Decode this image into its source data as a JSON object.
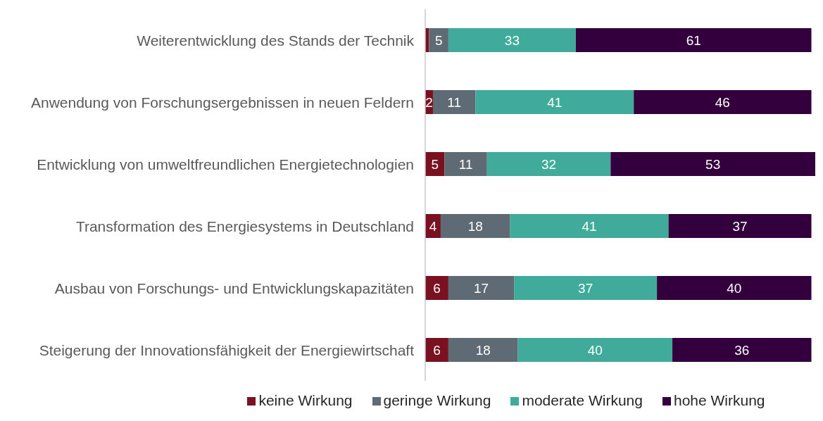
{
  "chart_data": {
    "type": "bar",
    "orientation": "horizontal",
    "stacked": true,
    "legend": "bottom",
    "categories": [
      "Weiterentwicklung des Stands der Technik",
      "Anwendung von Forschungsergebnissen in neuen Feldern",
      "Entwicklung von umweltfreundlichen Energietechnologien",
      "Transformation des Energiesystems in Deutschland",
      "Ausbau von Forschungs- und Entwicklungskapazitäten",
      "Steigerung der Innovationsfähigkeit der Energiewirtschaft"
    ],
    "series": [
      {
        "name": "keine Wirkung",
        "color": "#7a1120",
        "values": [
          1,
          2,
          5,
          4,
          6,
          6
        ],
        "value_labels": [
          null,
          "2",
          "5",
          "4",
          "6",
          "6"
        ]
      },
      {
        "name": "geringe Wirkung",
        "color": "#5e6a74",
        "values": [
          5,
          11,
          11,
          18,
          17,
          18
        ],
        "value_labels": [
          "5",
          "11",
          "11",
          "18",
          "17",
          "18"
        ]
      },
      {
        "name": "moderate Wirkung",
        "color": "#40ab9a",
        "values": [
          33,
          41,
          32,
          41,
          37,
          40
        ],
        "value_labels": [
          "33",
          "41",
          "32",
          "41",
          "37",
          "40"
        ]
      },
      {
        "name": "hohe Wirkung",
        "color": "#33003d",
        "values": [
          61,
          46,
          53,
          37,
          40,
          36
        ],
        "value_labels": [
          "61",
          "46",
          "53",
          "37",
          "40",
          "36"
        ]
      }
    ]
  }
}
